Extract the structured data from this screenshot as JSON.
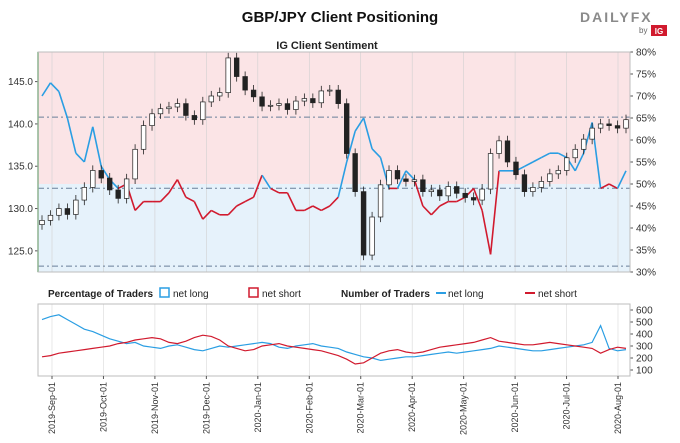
{
  "header": {
    "title": "GBP/JPY Client Positioning",
    "subtitle": "IG Client Sentiment",
    "logo_main": "DAILYFX",
    "logo_by": "by",
    "logo_ig": "IG"
  },
  "colors": {
    "net_long": "#2a9ee3",
    "net_short": "#d11a2e",
    "long_zone": "#e6f2fb",
    "short_zone": "#fbe4e6",
    "candle": "#222222",
    "axis_green": "#2e9e3a"
  },
  "chart_data": [
    {
      "type": "candlestick_with_sentiment",
      "title": "IG Client Sentiment",
      "price_axis": {
        "ylim": [
          122.5,
          148.5
        ],
        "ticks": [
          125.0,
          130.0,
          135.0,
          140.0,
          145.0
        ],
        "tick_labels": [
          "125.0",
          "130.0",
          "135.0",
          "140.0",
          "145.0"
        ]
      },
      "sentiment_axis": {
        "ylim": [
          30,
          80
        ],
        "ticks": [
          30,
          35,
          40,
          45,
          50,
          55,
          60,
          65,
          70,
          75,
          80
        ],
        "tick_labels": [
          "30%",
          "35%",
          "40%",
          "45%",
          "50%",
          "55%",
          "60%",
          "65%",
          "70%",
          "75%",
          "80%"
        ]
      },
      "reference_lines": [
        123.2,
        132.4,
        140.8
      ],
      "x_months": [
        "2019-Sep-01",
        "2019-Oct-01",
        "2019-Nov-01",
        "2019-Dec-01",
        "2020-Jan-01",
        "2020-Feb-01",
        "2020-Mar-01",
        "2020-Apr-01",
        "2020-May-01",
        "2020-Jun-01",
        "2020-Jul-01",
        "2020-Aug-01"
      ],
      "price_close": [
        128.6,
        129.2,
        130.0,
        129.3,
        131.0,
        132.5,
        134.5,
        133.6,
        132.2,
        131.2,
        133.5,
        137.0,
        139.8,
        141.2,
        141.8,
        142.0,
        142.4,
        141.0,
        140.5,
        142.6,
        143.3,
        143.7,
        147.8,
        145.6,
        144.0,
        143.2,
        142.1,
        142.2,
        142.4,
        141.7,
        142.7,
        143.0,
        142.5,
        143.9,
        144.0,
        142.4,
        136.5,
        132.0,
        124.5,
        129.0,
        132.8,
        134.5,
        133.5,
        133.2,
        133.4,
        132.0,
        132.2,
        131.5,
        132.6,
        131.8,
        131.3,
        131.0,
        132.3,
        136.5,
        138.0,
        135.5,
        134.0,
        132.0,
        132.5,
        133.2,
        134.1,
        134.5,
        136.0,
        137.0,
        138.2,
        139.5,
        140.0,
        139.8,
        139.5,
        140.5
      ],
      "sentiment_pct": [
        70,
        73,
        71,
        65,
        57,
        55,
        63,
        54,
        51,
        49,
        50,
        44,
        46,
        46,
        46,
        48,
        51,
        47,
        46,
        42,
        44,
        43,
        43,
        45,
        46,
        47,
        52,
        49,
        48,
        48,
        44,
        44,
        45,
        44,
        45,
        47,
        55,
        62,
        65,
        58,
        56,
        49,
        49,
        53,
        51,
        45,
        43,
        45,
        46,
        46,
        47,
        49,
        44,
        34,
        53,
        53,
        53,
        54,
        55,
        56,
        57,
        57,
        56,
        53,
        57,
        64,
        49,
        50,
        49,
        53
      ],
      "legend": {
        "long": "net long",
        "short": "net short"
      }
    },
    {
      "type": "line",
      "title": "Percentage of Traders / Number of Traders",
      "y_axis": {
        "ylim": [
          50,
          650
        ],
        "ticks": [
          100,
          200,
          300,
          400,
          500,
          600
        ],
        "tick_labels": [
          "100",
          "200",
          "300",
          "400",
          "500",
          "600"
        ]
      },
      "series": [
        {
          "name": "net long",
          "color": "#2a9ee3",
          "values": [
            520,
            545,
            560,
            520,
            480,
            440,
            420,
            390,
            360,
            340,
            320,
            330,
            300,
            290,
            280,
            300,
            310,
            290,
            270,
            260,
            280,
            300,
            290,
            300,
            310,
            320,
            330,
            320,
            290,
            280,
            300,
            310,
            320,
            300,
            290,
            280,
            250,
            230,
            210,
            200,
            180,
            190,
            200,
            210,
            210,
            220,
            230,
            240,
            250,
            240,
            250,
            260,
            270,
            280,
            300,
            290,
            280,
            270,
            260,
            260,
            270,
            280,
            290,
            300,
            310,
            330,
            470,
            280,
            260,
            270
          ]
        },
        {
          "name": "net short",
          "color": "#d11a2e",
          "values": [
            210,
            220,
            240,
            250,
            260,
            270,
            280,
            290,
            300,
            320,
            330,
            350,
            360,
            370,
            360,
            330,
            320,
            340,
            370,
            390,
            380,
            350,
            300,
            280,
            260,
            270,
            300,
            310,
            320,
            300,
            290,
            280,
            270,
            260,
            240,
            220,
            190,
            150,
            160,
            200,
            240,
            260,
            270,
            250,
            240,
            250,
            270,
            290,
            300,
            310,
            320,
            330,
            350,
            370,
            340,
            330,
            320,
            310,
            310,
            320,
            330,
            320,
            310,
            300,
            290,
            280,
            240,
            270,
            290,
            280
          ]
        }
      ],
      "legend": {
        "group1_title": "Percentage of Traders",
        "group1_long": "net long",
        "group1_short": "net short",
        "group2_title": "Number of Traders",
        "group2_long": "net long",
        "group2_short": "net short"
      }
    }
  ]
}
